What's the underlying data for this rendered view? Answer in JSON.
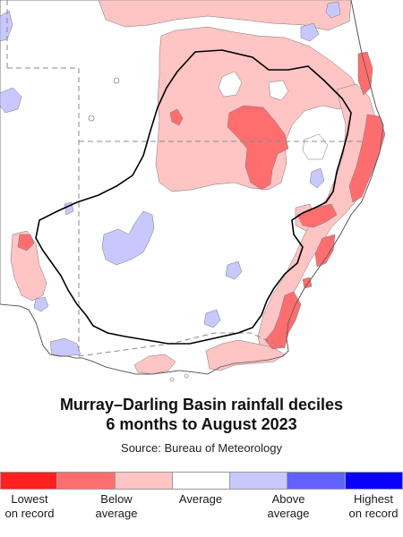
{
  "title": {
    "line1": "Murray–Darling Basin rainfall deciles",
    "line2": "6 months to August 2023"
  },
  "source": "Source: Bureau of Meteorology",
  "legend": {
    "categories": [
      {
        "id": "lowest",
        "color": "#ff2020"
      },
      {
        "id": "very-much-below",
        "color": "#ff6e6e"
      },
      {
        "id": "below",
        "color": "#ffc4c4"
      },
      {
        "id": "average",
        "color": "#ffffff"
      },
      {
        "id": "above",
        "color": "#c8c8ff"
      },
      {
        "id": "very-much-above",
        "color": "#6262ff"
      },
      {
        "id": "highest",
        "color": "#0a00ff"
      }
    ],
    "labels": [
      {
        "id": "lowest",
        "line1": "Lowest",
        "line2": "on record"
      },
      {
        "id": "below",
        "line1": "Below",
        "line2": "average"
      },
      {
        "id": "average",
        "line1": "Average",
        "line2": ""
      },
      {
        "id": "above",
        "line1": "Above",
        "line2": "average"
      },
      {
        "id": "highest",
        "line1": "Highest",
        "line2": "on record"
      }
    ]
  },
  "map": {
    "colors": {
      "lowest": "#ff2020",
      "very_much_below": "#ff6e6e",
      "below": "#ffc4c4",
      "average": "#ffffff",
      "above": "#c8c8ff",
      "very_much_above": "#6262ff",
      "basin_outline": "#000000",
      "coastline": "#555555",
      "state_border": "#888888"
    }
  }
}
